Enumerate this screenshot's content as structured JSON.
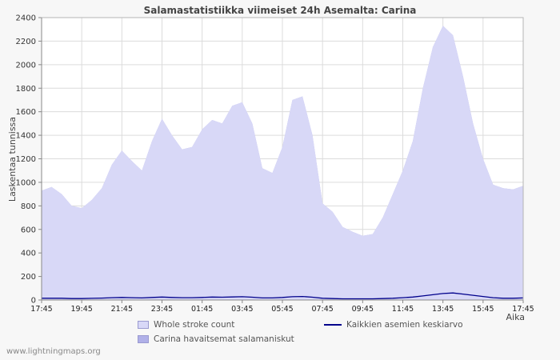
{
  "page": {
    "title": "Salamastatistiikka viimeiset 24h Asemalta: Carina",
    "watermark": "www.lightningmaps.org"
  },
  "axes": {
    "y_label": "Laskentaa tunnissa",
    "x_label": "Aika"
  },
  "legend": [
    {
      "label": "Whole stroke count",
      "type": "area",
      "color": "#d8d8f7"
    },
    {
      "label": "Carina havaitsemat salamaniskut",
      "type": "area",
      "color": "#b0b0e8"
    },
    {
      "label": "Kaikkien asemien keskiarvo",
      "type": "line",
      "color": "#00008b"
    }
  ],
  "chart_data": {
    "type": "area",
    "title": "Salamastatistiikka viimeiset 24h Asemalta: Carina",
    "xlabel": "Aika",
    "ylabel": "Laskentaa tunnissa",
    "ylim": [
      0,
      2400
    ],
    "ytick": 200,
    "grid": true,
    "legend_position": "bottom",
    "x_labels": [
      "17:45",
      "19:45",
      "21:45",
      "23:45",
      "01:45",
      "03:45",
      "05:45",
      "07:45",
      "09:45",
      "11:45",
      "13:45",
      "15:45",
      "17:45"
    ],
    "x_interval_minutes": 30,
    "series": [
      {
        "name": "Carina havaitsemat salamaniskut",
        "type": "area",
        "color": "#b0b0e8",
        "values": [
          930,
          960,
          900,
          800,
          780,
          850,
          950,
          1150,
          1270,
          1180,
          1100,
          1350,
          1540,
          1400,
          1280,
          1300,
          1450,
          1530,
          1500,
          1650,
          1680,
          1500,
          1120,
          1080,
          1300,
          1700,
          1730,
          1400,
          820,
          750,
          620,
          580,
          545,
          560,
          700,
          900,
          1100,
          1350,
          1800,
          2150,
          2330,
          2250,
          1900,
          1500,
          1200,
          980,
          950,
          940,
          970
        ]
      },
      {
        "name": "Whole stroke count",
        "type": "area",
        "color": "#d8d8f7",
        "values": [
          930,
          960,
          900,
          800,
          780,
          850,
          950,
          1150,
          1270,
          1180,
          1100,
          1350,
          1540,
          1400,
          1280,
          1300,
          1450,
          1530,
          1500,
          1650,
          1680,
          1500,
          1120,
          1080,
          1300,
          1700,
          1730,
          1400,
          820,
          750,
          620,
          580,
          545,
          560,
          700,
          900,
          1100,
          1350,
          1800,
          2150,
          2330,
          2250,
          1900,
          1500,
          1200,
          980,
          950,
          940,
          970
        ]
      },
      {
        "name": "Kaikkien asemien keskiarvo",
        "type": "line",
        "color": "#00008b",
        "values": [
          15,
          15,
          15,
          12,
          12,
          14,
          16,
          20,
          22,
          20,
          18,
          22,
          25,
          22,
          20,
          20,
          22,
          25,
          24,
          26,
          28,
          24,
          18,
          18,
          22,
          28,
          30,
          24,
          15,
          12,
          10,
          10,
          10,
          10,
          12,
          15,
          20,
          25,
          35,
          45,
          55,
          60,
          50,
          40,
          30,
          20,
          15,
          15,
          18
        ]
      }
    ]
  }
}
